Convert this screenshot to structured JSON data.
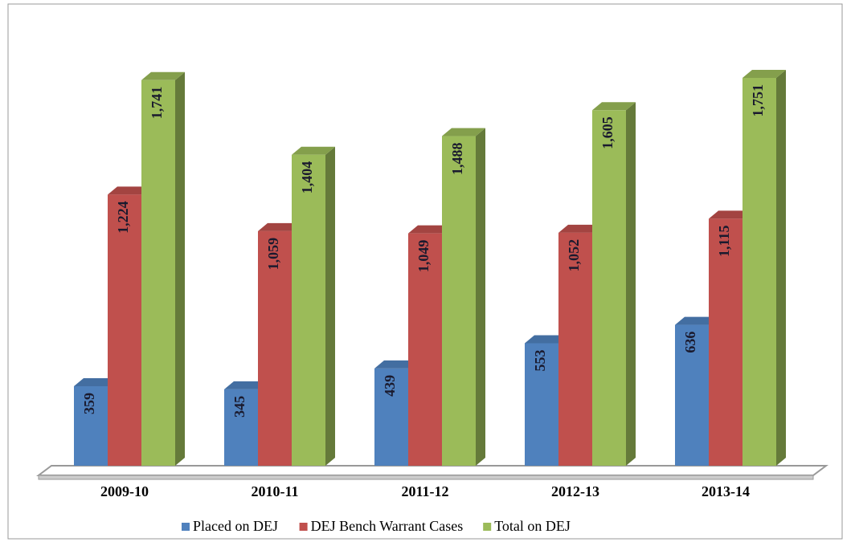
{
  "chart_data": {
    "type": "bar",
    "categories": [
      "2009-10",
      "2010-11",
      "2011-12",
      "2012-13",
      "2013-14"
    ],
    "series": [
      {
        "name": "Placed on DEJ",
        "color": "#4f81bd",
        "values": [
          359,
          345,
          439,
          553,
          636
        ]
      },
      {
        "name": "DEJ Bench Warrant Cases",
        "color": "#c0504d",
        "values": [
          1224,
          1059,
          1049,
          1052,
          1115
        ],
        "value_labels": [
          "1,224",
          "1,059",
          "1,049",
          "1,052",
          "1,115"
        ]
      },
      {
        "name": "Total on DEJ",
        "color": "#9bbb59",
        "values": [
          1741,
          1404,
          1488,
          1605,
          1751
        ],
        "value_labels": [
          "1,741",
          "1,404",
          "1,488",
          "1,605",
          "1,751"
        ]
      }
    ],
    "legend": "bottom"
  }
}
